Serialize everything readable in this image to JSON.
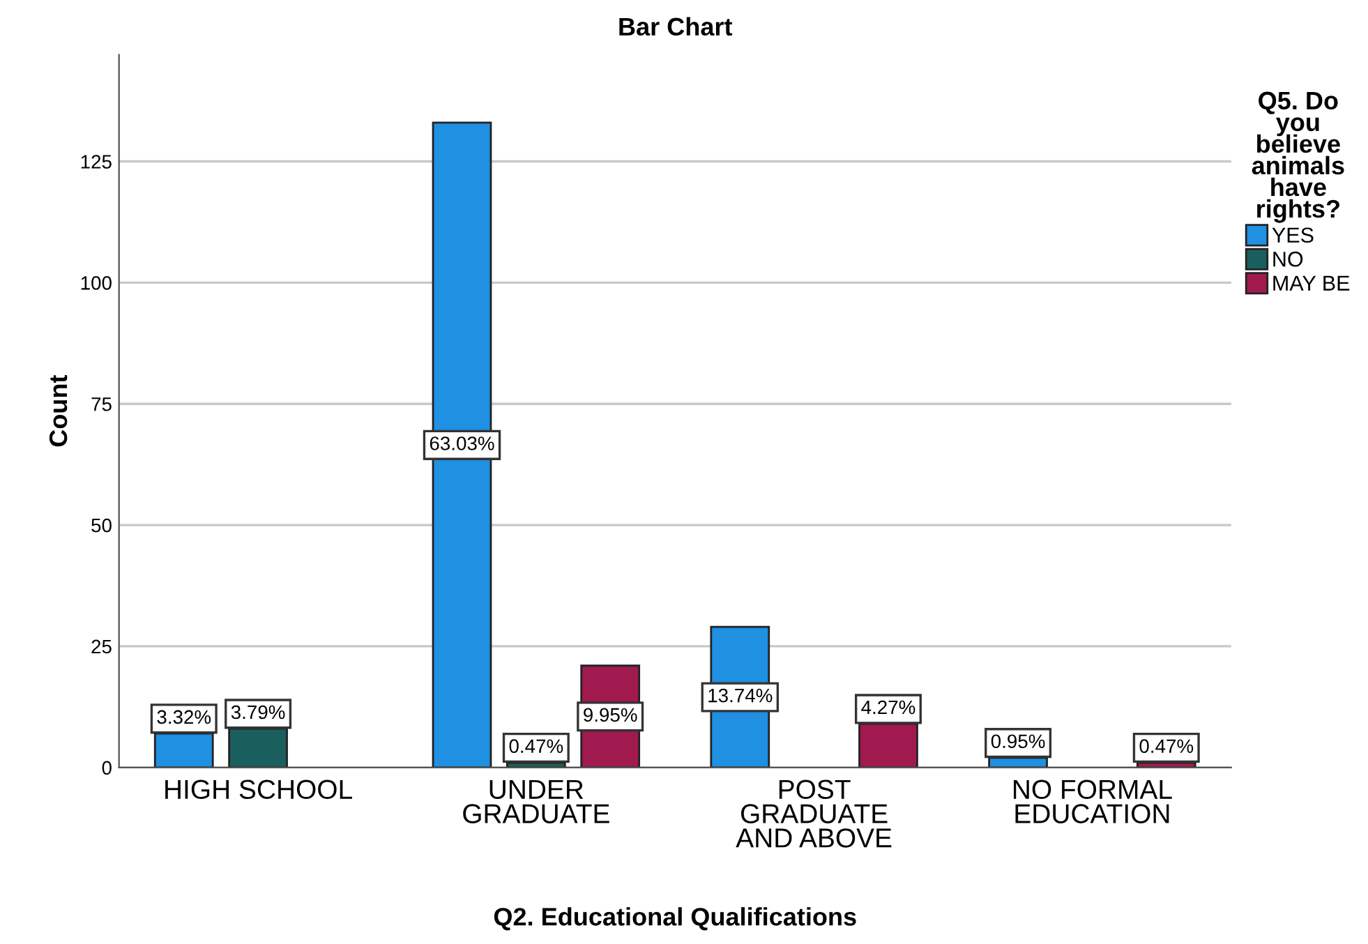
{
  "chart_data": {
    "type": "bar",
    "title": "Bar Chart",
    "xlabel": "Q2. Educational Qualifications",
    "ylabel": "Count",
    "legend_title": "Q5. Do\nyou\nbelieve\nanimals\nhave\nrights?",
    "categories": [
      "HIGH SCHOOL",
      "UNDER\nGRADUATE",
      "POST\nGRADUATE\nAND ABOVE",
      "NO FORMAL\nEDUCATION"
    ],
    "series": [
      {
        "name": "YES",
        "color": "#1f90e2",
        "values": [
          7,
          133,
          29,
          2
        ]
      },
      {
        "name": "NO",
        "color": "#1b5e5e",
        "values": [
          8,
          1,
          null,
          null
        ]
      },
      {
        "name": "MAY BE",
        "color": "#a01a50",
        "values": [
          null,
          21,
          9,
          1
        ]
      }
    ],
    "annotations": [
      "3.32%",
      "3.79%",
      "63.03%",
      "0.47%",
      "9.95%",
      "13.74%",
      "4.27%",
      "0.95%",
      "0.47%"
    ],
    "ylim": [
      0,
      147
    ],
    "yticks": [
      0,
      25,
      50,
      75,
      100,
      125
    ],
    "grid": "y",
    "legend": "right"
  }
}
